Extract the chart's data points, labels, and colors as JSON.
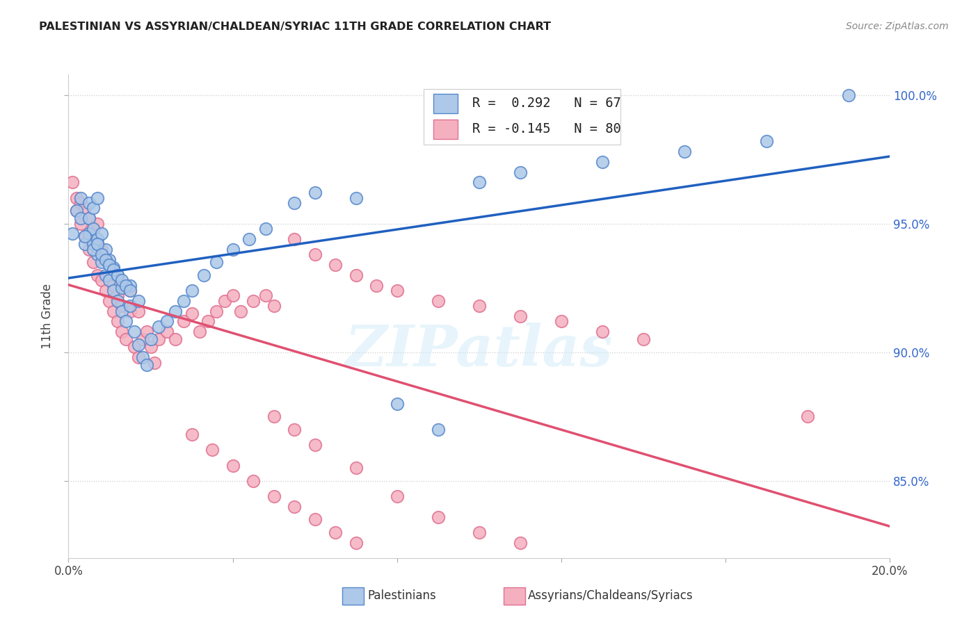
{
  "title": "PALESTINIAN VS ASSYRIAN/CHALDEAN/SYRIAC 11TH GRADE CORRELATION CHART",
  "source": "Source: ZipAtlas.com",
  "ylabel": "11th Grade",
  "blue_R": 0.292,
  "blue_N": 67,
  "pink_R": -0.145,
  "pink_N": 80,
  "blue_face_color": "#adc8e8",
  "pink_face_color": "#f5b0c0",
  "blue_edge_color": "#5588cc",
  "pink_edge_color": "#e07090",
  "blue_line_color": "#2060c0",
  "pink_line_color": "#e05070",
  "watermark": "ZIPatlas",
  "legend_label_blue": "Palestinians",
  "legend_label_pink": "Assyrians/Chaldeans/Syriacs",
  "xmin": 0.0,
  "xmax": 0.2,
  "ymin": 0.82,
  "ymax": 1.008,
  "blue_x": [
    0.001,
    0.002,
    0.003,
    0.003,
    0.004,
    0.005,
    0.005,
    0.005,
    0.006,
    0.006,
    0.006,
    0.007,
    0.007,
    0.007,
    0.008,
    0.008,
    0.009,
    0.009,
    0.01,
    0.01,
    0.011,
    0.011,
    0.012,
    0.012,
    0.013,
    0.013,
    0.014,
    0.015,
    0.015,
    0.016,
    0.017,
    0.017,
    0.018,
    0.019,
    0.02,
    0.022,
    0.024,
    0.026,
    0.028,
    0.03,
    0.033,
    0.036,
    0.04,
    0.044,
    0.048,
    0.055,
    0.06,
    0.07,
    0.08,
    0.09,
    0.1,
    0.11,
    0.13,
    0.15,
    0.17,
    0.19,
    0.004,
    0.006,
    0.007,
    0.008,
    0.009,
    0.01,
    0.011,
    0.012,
    0.013,
    0.014,
    0.015
  ],
  "blue_y": [
    0.946,
    0.955,
    0.952,
    0.96,
    0.942,
    0.946,
    0.952,
    0.958,
    0.942,
    0.948,
    0.956,
    0.938,
    0.944,
    0.96,
    0.935,
    0.946,
    0.93,
    0.94,
    0.928,
    0.936,
    0.924,
    0.933,
    0.92,
    0.93,
    0.916,
    0.925,
    0.912,
    0.918,
    0.926,
    0.908,
    0.903,
    0.92,
    0.898,
    0.895,
    0.905,
    0.91,
    0.912,
    0.916,
    0.92,
    0.924,
    0.93,
    0.935,
    0.94,
    0.944,
    0.948,
    0.958,
    0.962,
    0.96,
    0.88,
    0.87,
    0.966,
    0.97,
    0.974,
    0.978,
    0.982,
    1.0,
    0.945,
    0.94,
    0.942,
    0.938,
    0.936,
    0.934,
    0.932,
    0.93,
    0.928,
    0.926,
    0.924
  ],
  "pink_x": [
    0.001,
    0.002,
    0.002,
    0.003,
    0.003,
    0.004,
    0.004,
    0.005,
    0.005,
    0.006,
    0.006,
    0.007,
    0.007,
    0.007,
    0.008,
    0.008,
    0.009,
    0.009,
    0.01,
    0.01,
    0.011,
    0.011,
    0.012,
    0.012,
    0.013,
    0.013,
    0.014,
    0.015,
    0.015,
    0.016,
    0.017,
    0.017,
    0.018,
    0.019,
    0.02,
    0.021,
    0.022,
    0.024,
    0.026,
    0.028,
    0.03,
    0.032,
    0.034,
    0.036,
    0.038,
    0.04,
    0.042,
    0.045,
    0.048,
    0.05,
    0.055,
    0.06,
    0.065,
    0.07,
    0.075,
    0.08,
    0.09,
    0.1,
    0.11,
    0.12,
    0.13,
    0.14,
    0.05,
    0.055,
    0.06,
    0.07,
    0.08,
    0.09,
    0.1,
    0.11,
    0.03,
    0.035,
    0.04,
    0.045,
    0.05,
    0.055,
    0.06,
    0.065,
    0.07,
    0.18
  ],
  "pink_y": [
    0.966,
    0.96,
    0.955,
    0.95,
    0.958,
    0.945,
    0.956,
    0.94,
    0.952,
    0.935,
    0.948,
    0.93,
    0.942,
    0.95,
    0.928,
    0.94,
    0.924,
    0.936,
    0.92,
    0.93,
    0.916,
    0.926,
    0.912,
    0.922,
    0.908,
    0.918,
    0.905,
    0.916,
    0.924,
    0.902,
    0.898,
    0.916,
    0.905,
    0.908,
    0.902,
    0.896,
    0.905,
    0.908,
    0.905,
    0.912,
    0.915,
    0.908,
    0.912,
    0.916,
    0.92,
    0.922,
    0.916,
    0.92,
    0.922,
    0.918,
    0.944,
    0.938,
    0.934,
    0.93,
    0.926,
    0.924,
    0.92,
    0.918,
    0.914,
    0.912,
    0.908,
    0.905,
    0.875,
    0.87,
    0.864,
    0.855,
    0.844,
    0.836,
    0.83,
    0.826,
    0.868,
    0.862,
    0.856,
    0.85,
    0.844,
    0.84,
    0.835,
    0.83,
    0.826,
    0.875
  ]
}
